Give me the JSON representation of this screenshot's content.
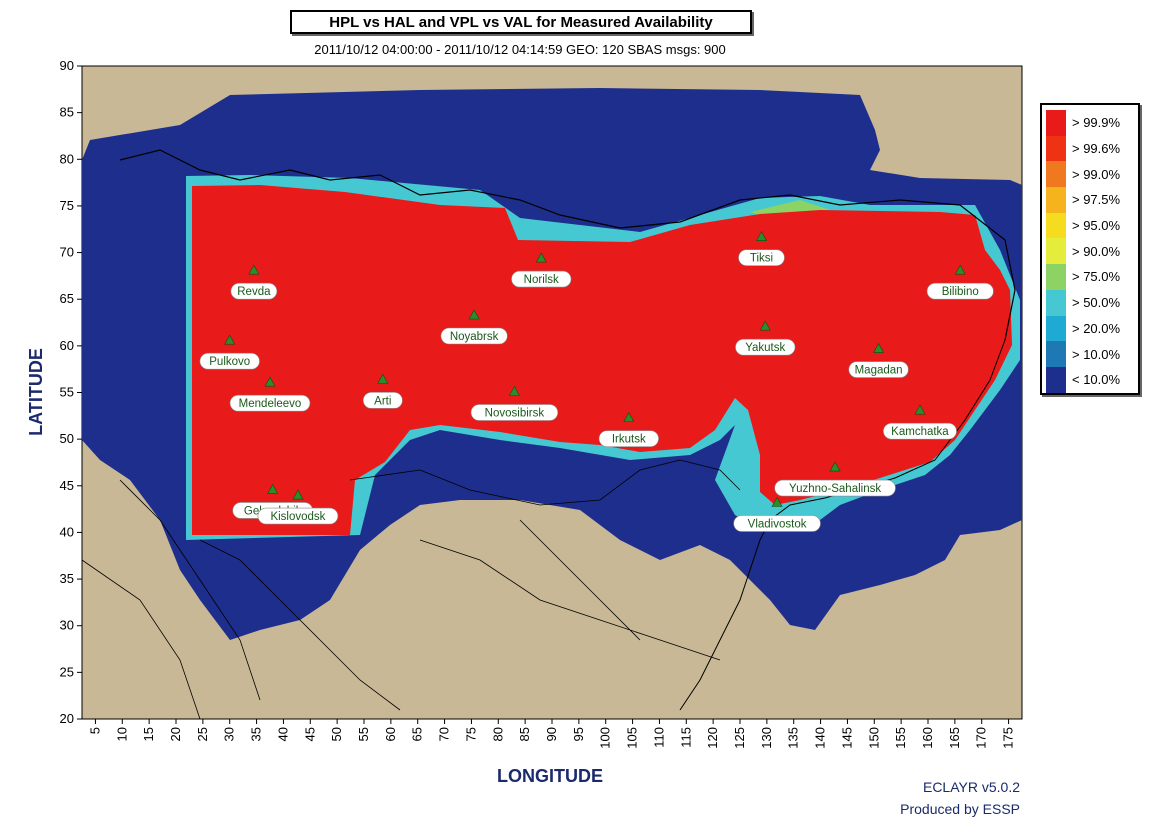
{
  "title": "HPL vs HAL and VPL vs VAL for Measured Availability",
  "subtitle": "2011/10/12 04:00:00 - 2011/10/12 04:14:59  GEO: 120  SBAS msgs: 900",
  "axes": {
    "x_title": "LONGITUDE",
    "y_title": "LATITUDE",
    "x_ticks": [
      "5",
      "10",
      "15",
      "20",
      "25",
      "30",
      "35",
      "40",
      "45",
      "50",
      "55",
      "60",
      "65",
      "70",
      "75",
      "80",
      "85",
      "90",
      "95",
      "100",
      "105",
      "110",
      "115",
      "120",
      "125",
      "130",
      "135",
      "140",
      "145",
      "150",
      "155",
      "160",
      "165",
      "170",
      "175"
    ],
    "y_ticks": [
      "90",
      "85",
      "80",
      "75",
      "70",
      "65",
      "60",
      "55",
      "50",
      "45",
      "40",
      "35",
      "30",
      "25",
      "20"
    ]
  },
  "legend": [
    {
      "label": "> 99.9%",
      "color": "#e81a1a"
    },
    {
      "label": "> 99.6%",
      "color": "#f03214"
    },
    {
      "label": "> 99.0%",
      "color": "#f0781e"
    },
    {
      "label": "> 97.5%",
      "color": "#f5b41e"
    },
    {
      "label": "> 95.0%",
      "color": "#f5dc1e"
    },
    {
      "label": "> 90.0%",
      "color": "#e6ec3c"
    },
    {
      "label": "> 75.0%",
      "color": "#8cd264"
    },
    {
      "label": "> 50.0%",
      "color": "#46c8d2"
    },
    {
      "label": "> 20.0%",
      "color": "#1eaad2"
    },
    {
      "label": "> 10.0%",
      "color": "#1e78b4"
    },
    {
      "label": "< 10.0%",
      "color": "#1e2e8c"
    }
  ],
  "stations": [
    {
      "name": "Revda",
      "lon": 34.5,
      "lat": 68.0
    },
    {
      "name": "Norilsk",
      "lon": 88.0,
      "lat": 69.3
    },
    {
      "name": "Tiksi",
      "lon": 129.0,
      "lat": 71.6
    },
    {
      "name": "Bilibino",
      "lon": 166.0,
      "lat": 68.0
    },
    {
      "name": "Noyabrsk",
      "lon": 75.5,
      "lat": 63.2
    },
    {
      "name": "Yakutsk",
      "lon": 129.7,
      "lat": 62.0
    },
    {
      "name": "Pulkovo",
      "lon": 30.0,
      "lat": 60.5
    },
    {
      "name": "Magadan",
      "lon": 150.8,
      "lat": 59.6
    },
    {
      "name": "Mendeleevo",
      "lon": 37.5,
      "lat": 56.0
    },
    {
      "name": "Arti",
      "lon": 58.5,
      "lat": 56.3
    },
    {
      "name": "Novosibirsk",
      "lon": 83.0,
      "lat": 55.0
    },
    {
      "name": "Kamchatka",
      "lon": 158.5,
      "lat": 53.0
    },
    {
      "name": "Irkutsk",
      "lon": 104.3,
      "lat": 52.2
    },
    {
      "name": "Yuzhno-Sahalinsk",
      "lon": 142.7,
      "lat": 46.9
    },
    {
      "name": "Gelendzhik",
      "lon": 38.0,
      "lat": 44.5
    },
    {
      "name": "Kislovodsk",
      "lon": 42.7,
      "lat": 43.9
    },
    {
      "name": "Vladivostok",
      "lon": 131.9,
      "lat": 43.1
    }
  ],
  "footer": {
    "line1": "ECLAYR v5.0.2",
    "line2": "Produced by ESSP"
  },
  "colors": {
    "land": "#c8b896",
    "sea_frame": "#1e2e8c",
    "availability_high": "#e81a1a"
  }
}
